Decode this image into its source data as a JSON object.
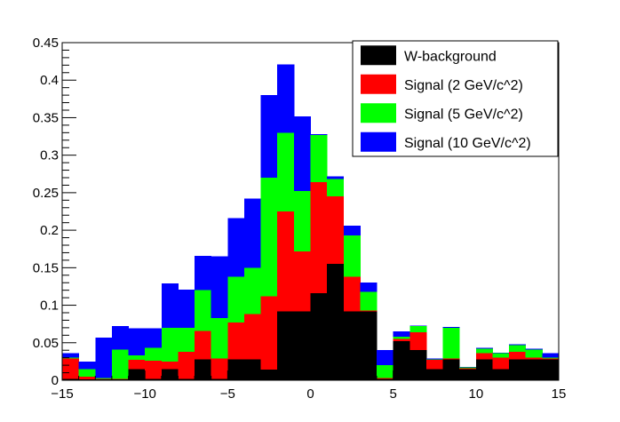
{
  "chart_data": {
    "type": "bar",
    "stacked": true,
    "bin_width": 1,
    "xlim": [
      -15,
      15
    ],
    "ylim": [
      0,
      0.45
    ],
    "x_ticks": [
      -15,
      -10,
      -5,
      0,
      5,
      10,
      15
    ],
    "y_ticks": [
      0,
      0.05,
      0.1,
      0.15,
      0.2,
      0.25,
      0.3,
      0.35,
      0.4,
      0.45
    ],
    "legend_position": "top-right",
    "x_bin_edges": [
      -15,
      -14,
      -13,
      -12,
      -11,
      -10,
      -9,
      -8,
      -7,
      -6,
      -5,
      -4,
      -3,
      -2,
      -1,
      0,
      1,
      2,
      3,
      4,
      5,
      6,
      7,
      8,
      9,
      10,
      11,
      12,
      13,
      14,
      15
    ],
    "series": [
      {
        "name": "W-background",
        "color": "#000000",
        "values": [
          0.002,
          0.001,
          0.001,
          0.001,
          0.015,
          0.002,
          0.015,
          0.002,
          0.028,
          0.002,
          0.028,
          0.028,
          0.014,
          0.092,
          0.092,
          0.116,
          0.155,
          0.092,
          0.092,
          0.002,
          0.052,
          0.04,
          0.015,
          0.028,
          0.015,
          0.028,
          0.015,
          0.028,
          0.028,
          0.028
        ]
      },
      {
        "name": "Signal (2 GeV/c^2)",
        "color": "#ff0000",
        "values": [
          0.027,
          0.004,
          0.001,
          0.001,
          0.012,
          0.024,
          0.01,
          0.036,
          0.038,
          0.027,
          0.049,
          0.06,
          0.098,
          0.133,
          0.08,
          0.148,
          0.09,
          0.046,
          0.001,
          0.001,
          0.003,
          0.024,
          0.012,
          0.001,
          0.001,
          0.008,
          0.015,
          0.01,
          0.002,
          0.001
        ]
      },
      {
        "name": "Signal (5 GeV/c^2)",
        "color": "#00ff00",
        "values": [
          0.001,
          0.01,
          0.001,
          0.039,
          0.006,
          0.017,
          0.045,
          0.032,
          0.054,
          0.054,
          0.061,
          0.062,
          0.158,
          0.105,
          0.08,
          0.063,
          0.023,
          0.055,
          0.025,
          0.017,
          0.003,
          0.008,
          0.001,
          0.041,
          0.001,
          0.006,
          0.006,
          0.009,
          0.011,
          0.001
        ]
      },
      {
        "name": "Signal (10 GeV/c^2)",
        "color": "#0000ff",
        "values": [
          0.006,
          0.01,
          0.054,
          0.031,
          0.036,
          0.026,
          0.059,
          0.051,
          0.046,
          0.082,
          0.078,
          0.092,
          0.11,
          0.091,
          0.1,
          0.001,
          0.004,
          0.013,
          0.012,
          0.02,
          0.007,
          0.001,
          0.001,
          0.001,
          0.001,
          0.001,
          0.001,
          0.001,
          0.001,
          0.006
        ]
      }
    ]
  }
}
